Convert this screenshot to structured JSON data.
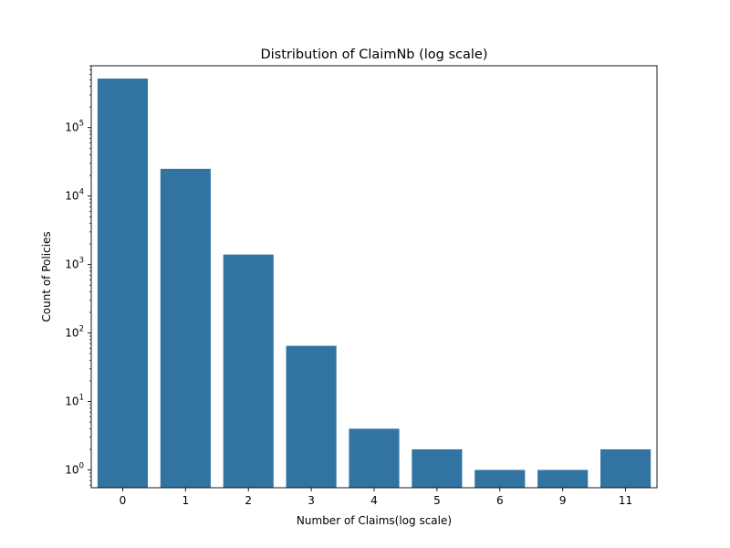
{
  "chart_data": {
    "type": "bar",
    "title": "Distribution of ClaimNb (log scale)",
    "xlabel": "Number of Claims(log scale)",
    "ylabel": "Count of Policies",
    "yscale": "log",
    "ylim": [
      0.55,
      800000
    ],
    "categories": [
      "0",
      "1",
      "2",
      "3",
      "4",
      "5",
      "6",
      "9",
      "11"
    ],
    "values": [
      520000,
      25000,
      1400,
      65,
      4,
      2,
      1,
      1,
      2
    ],
    "yticks": [
      1,
      10,
      100,
      1000,
      10000,
      100000
    ],
    "ytick_labels": [
      {
        "base": "10",
        "exp": "0"
      },
      {
        "base": "10",
        "exp": "1"
      },
      {
        "base": "10",
        "exp": "2"
      },
      {
        "base": "10",
        "exp": "3"
      },
      {
        "base": "10",
        "exp": "4"
      },
      {
        "base": "10",
        "exp": "5"
      }
    ],
    "grid": false,
    "bar_color": "#3274a1"
  }
}
